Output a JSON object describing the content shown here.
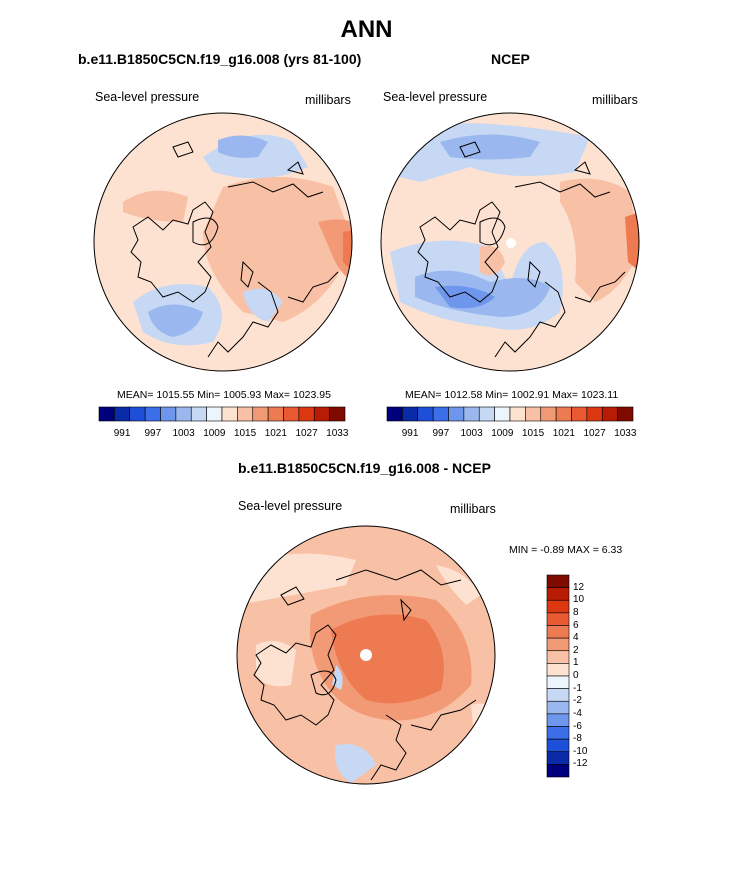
{
  "title": "ANN",
  "colors": {
    "abs_scale": [
      "#00007f",
      "#0b2aa8",
      "#1d4fd8",
      "#3b6ee8",
      "#6d96ec",
      "#9ab8ef",
      "#c6d8f3",
      "#eef4fb",
      "#fde2d2",
      "#f8c0a4",
      "#f29a75",
      "#ee7a52",
      "#e95a32",
      "#dc3812",
      "#b81c04",
      "#7f0b00"
    ],
    "diff_scale": [
      "#00007f",
      "#0b2aa8",
      "#1d4fd8",
      "#3b6ee8",
      "#6d96ec",
      "#9ab8ef",
      "#c6d8f3",
      "#eef4fb",
      "#fde2d2",
      "#f8c0a4",
      "#f29a75",
      "#ee7a52",
      "#e95a32",
      "#dc3812",
      "#b81c04",
      "#7f0b00"
    ],
    "coast": "#000000"
  },
  "chart_data": [
    {
      "type": "heatmap",
      "projection": "north-polar-stereographic",
      "panel_title": "b.e11.B1850C5CN.f19_g16.008 (yrs 81-100)",
      "variable": "Sea-level pressure",
      "units": "millibars",
      "stats": {
        "mean": 1015.55,
        "min": 1005.93,
        "max": 1023.95
      },
      "stats_text": "MEAN= 1015.55  Min= 1005.93  Max= 1023.95",
      "colorbar_ticks": [
        "991",
        "997",
        "1003",
        "1009",
        "1015",
        "1021",
        "1027",
        "1033"
      ]
    },
    {
      "type": "heatmap",
      "projection": "north-polar-stereographic",
      "panel_title": "NCEP",
      "variable": "Sea-level pressure",
      "units": "millibars",
      "stats": {
        "mean": 1012.58,
        "min": 1002.91,
        "max": 1023.11
      },
      "stats_text": "MEAN= 1012.58  Min= 1002.91  Max= 1023.11",
      "colorbar_ticks": [
        "991",
        "997",
        "1003",
        "1009",
        "1015",
        "1021",
        "1027",
        "1033"
      ]
    },
    {
      "type": "heatmap",
      "projection": "north-polar-stereographic",
      "panel_title": "b.e11.B1850C5CN.f19_g16.008 - NCEP",
      "variable": "Sea-level pressure",
      "units": "millibars",
      "stats": {
        "min": -0.89,
        "max": 6.33
      },
      "stats_text": "MIN =  -0.89 MAX =   6.33",
      "colorbar_ticks": [
        "12",
        "10",
        "8",
        "6",
        "4",
        "2",
        "1",
        "0",
        "-1",
        "-2",
        "-4",
        "-6",
        "-8",
        "-10",
        "-12"
      ]
    }
  ]
}
